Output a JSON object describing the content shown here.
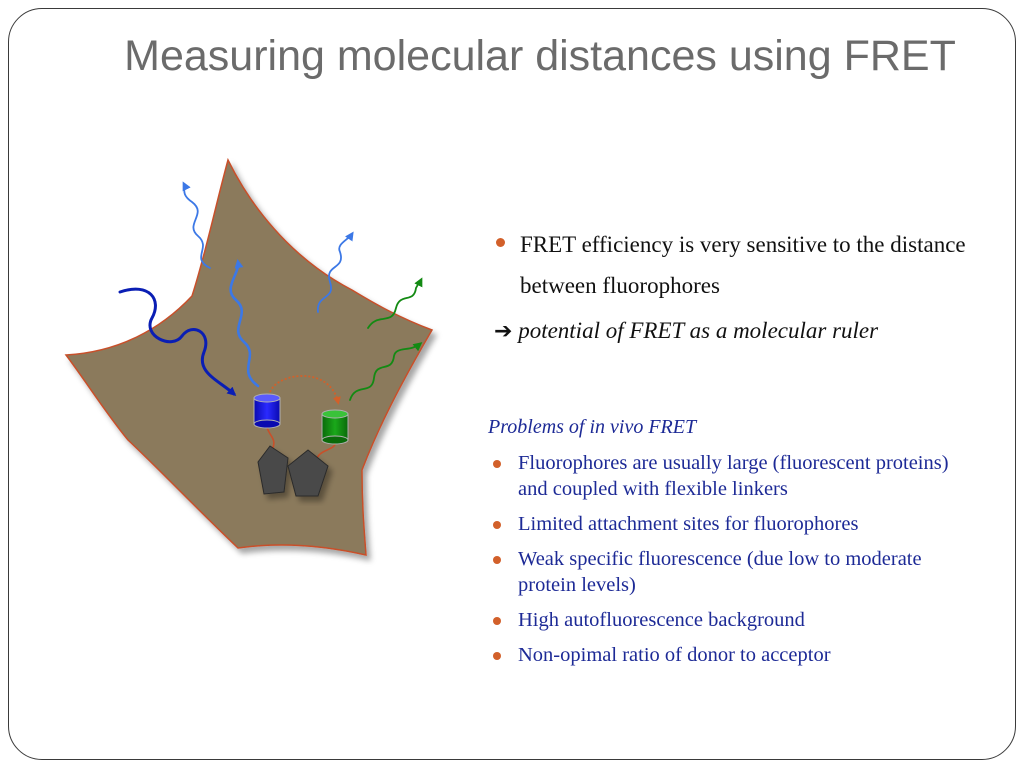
{
  "slide": {
    "title": "Measuring molecular distances using FRET",
    "main_points": [
      "FRET efficiency is very sensitive to the distance between fluorophores"
    ],
    "ruler_line": {
      "arrow_icon": "right-arrow-icon",
      "text": "potential of FRET as a molecular ruler"
    },
    "problems": {
      "heading": "Problems of in vivo FRET",
      "items": [
        "Fluorophores are usually large (fluorescent proteins) and coupled with flexible linkers",
        "Limited attachment sites for fluorophores",
        "Weak specific fluorescence (due low to moderate protein levels)",
        "High autofluorescence background",
        "Non-opimal ratio of donor to acceptor"
      ]
    }
  },
  "diagram": {
    "cell_color": "#8b7a5c",
    "cell_outline_color": "#c8502a",
    "donor_color": "#1515e6",
    "acceptor_color": "#0f8a0f",
    "excitation_color": "#0a1eb4",
    "emission_blue_color": "#3c78e6",
    "emission_green_color": "#138a13",
    "transfer_arrow_color": "#d2602a",
    "protein_color": "#4a4a4a",
    "bullet_color": "#d2602a",
    "text_blue": "#1d2a96"
  }
}
